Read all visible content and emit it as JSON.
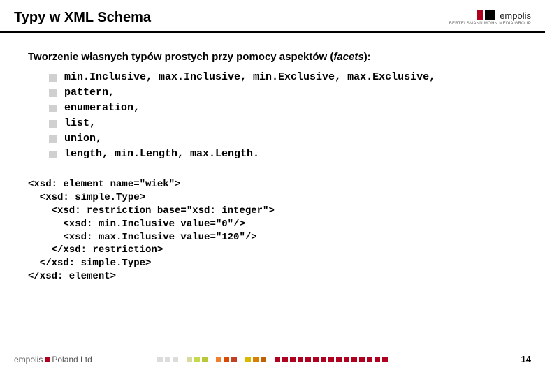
{
  "header": {
    "title": "Typy w XML Schema",
    "logo": {
      "text": "empolis",
      "subtitle": "BERTELSMANN MOHN MEDIA GROUP"
    }
  },
  "subtitle_pre": "Tworzenie własnych typów prostych przy pomocy aspektów (",
  "subtitle_em": "facets",
  "subtitle_post": "):",
  "bullets": [
    "min.Inclusive, max.Inclusive, min.Exclusive, max.Exclusive,",
    "pattern,",
    "enumeration,",
    "list,",
    "union,",
    "length, min.Length, max.Length."
  ],
  "code": "<xsd: element name=\"wiek\">\n  <xsd: simple.Type>\n    <xsd: restriction base=\"xsd: integer\">\n      <xsd: min.Inclusive value=\"0\"/>\n      <xsd: max.Inclusive value=\"120\"/>\n    </xsd: restriction>\n  </xsd: simple.Type>\n</xsd: element>",
  "footer": {
    "brand": "empolis",
    "unit": "Poland Ltd",
    "page": "14",
    "squares": [
      "#dcdcdc",
      "#dcdcdc",
      "#dcdcdc",
      "",
      "#d9d9a0",
      "#c5d94a",
      "#b8c837",
      "",
      "#f08030",
      "#d94a00",
      "#c04028",
      "",
      "#d9b800",
      "#d98000",
      "#c06000",
      "",
      "#b00020",
      "#b00020",
      "#b00020",
      "#b00020",
      "#b00020",
      "#b00020",
      "#b00020",
      "#b00020",
      "#b00020",
      "#b00020",
      "#b00020",
      "#b00020",
      "#b00020",
      "#b00020",
      "#b00020"
    ]
  }
}
